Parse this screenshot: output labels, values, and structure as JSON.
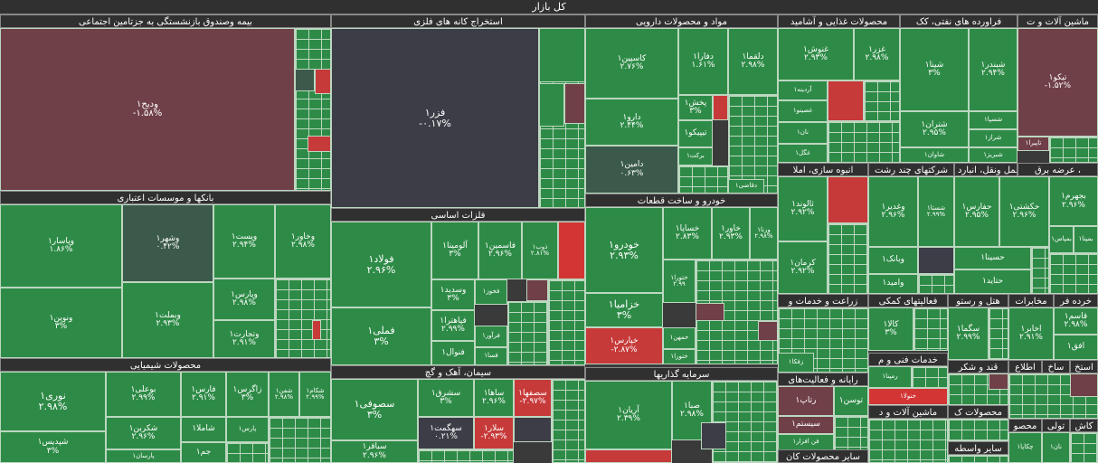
{
  "market_title": "کل بازار",
  "sectors": {
    "insurance": "بیمه وصندوق بازنشستگی به جزتامین اجتماعی",
    "mining": "استخراج کانه های فلزی",
    "pharma": "مواد و محصولات دارویی",
    "food": "محصولات غذایی و آشامید",
    "oil": "فراورده های نفتی، کک",
    "machinery": "ماشین آلات و ت",
    "banks": "بانکها و موسسات اعتباری",
    "basic_metals": "فلزات اساسی",
    "auto": "خودرو و ساخت قطعات",
    "building": "انبوه سازی، املا",
    "multi": "شرکتهای چند رشت",
    "transport": "حمل ونقل، انبارد",
    "utility": "عرضه برق ،",
    "agri": "زراعت و خدمات و",
    "aux": "فعالیتهای کمکی",
    "hotel": "هتل و رستو",
    "telecom": "مخابرات",
    "retail": "خرده فر",
    "chemical": "محصولات شیمیایی",
    "cement": "سیمان، آهک و گچ",
    "invest": "سرمایه گذاریها",
    "computer": "رایانه و فعالیت‌های",
    "eng": "خدمات فنی و م",
    "sugar": "قند و شکر",
    "infotech": "اطلاع",
    "ir": "ساخ",
    "ext": "استخ",
    "electric": "ماشین آلات و د",
    "other_products": "سایر محصولات کان",
    "products_k": "محصولات ک",
    "intermediary": "سایر واسطه",
    "textile": "نساجی",
    "kashi": "کاش",
    "tuli": "تولی",
    "mahsu": "محصو"
  },
  "tiles": {
    "vadi": {
      "name": "ودیح۱",
      "pct": "-۱.۵۸%"
    },
    "fezar": {
      "name": "فزر۱",
      "pct": "-۰.۱۷%"
    },
    "caspian": {
      "name": "کاسپین۱",
      "pct": "۲.۷۶%"
    },
    "dalqa": {
      "name": "دلقما۱",
      "pct": "۲.۹۸%"
    },
    "dafra": {
      "name": "دفارا۱",
      "pct": "۱.۶۱%"
    },
    "darou": {
      "name": "دارو۱",
      "pct": "۲.۴۴%"
    },
    "pakhsh": {
      "name": "پخش۱",
      "pct": "۳%"
    },
    "tipico": {
      "name": "تیپیکو۱",
      "pct": ""
    },
    "barakat": {
      "name": "برکت۱",
      "pct": ""
    },
    "damin": {
      "name": "دامین۱",
      "pct": "۰.۶۳%"
    },
    "daqafi": {
      "name": "دقاضی۱",
      "pct": ""
    },
    "ghonosh": {
      "name": "غنوش۱",
      "pct": "۲.۹۳%"
    },
    "ghezar": {
      "name": "غزر۱",
      "pct": "۲.۹۸%"
    },
    "ardineh": {
      "name": "آردینه۱",
      "pct": ""
    },
    "ghasino": {
      "name": "غصینو۱",
      "pct": ""
    },
    "nan": {
      "name": "نان۱",
      "pct": ""
    },
    "ghagol": {
      "name": "غگل۱",
      "pct": ""
    },
    "shina": {
      "name": "شینا۱",
      "pct": "۳%"
    },
    "shabandar": {
      "name": "شبندر۱",
      "pct": "۲.۹۴%"
    },
    "shetran": {
      "name": "شتران۱",
      "pct": "۲.۹۵%"
    },
    "shesapa": {
      "name": "شسپا۱",
      "pct": ""
    },
    "sheraz": {
      "name": "شراز۱",
      "pct": ""
    },
    "shebriz": {
      "name": "شبریز۱",
      "pct": ""
    },
    "shavan": {
      "name": "شاوان۱",
      "pct": ""
    },
    "tikco": {
      "name": "تیکو۱",
      "pct": "-۱.۵۲%"
    },
    "tapira": {
      "name": "تاپیرا۱",
      "pct": ""
    },
    "vepasar": {
      "name": "وپاسار۱",
      "pct": "۱.۸۶%"
    },
    "vashahr": {
      "name": "وشهر۱",
      "pct": "۰.۴۲%"
    },
    "vpost": {
      "name": "وپست۱",
      "pct": "۲.۹۴%"
    },
    "vkhavar": {
      "name": "وخاور۱",
      "pct": "۲.۹۸%"
    },
    "vnovin": {
      "name": "ونوین۱",
      "pct": "۳%"
    },
    "vbemellat": {
      "name": "وبملت۱",
      "pct": "۲.۹۳%"
    },
    "vparsa": {
      "name": "وپارس۱",
      "pct": "۲.۹۸%"
    },
    "vtejarat": {
      "name": "وتجارت۱",
      "pct": "۲.۹۱%"
    },
    "foulad": {
      "name": "فولاد۱",
      "pct": "۲.۹۶%"
    },
    "falumina": {
      "name": "آلومینا۱",
      "pct": "۳%"
    },
    "faseman": {
      "name": "فاسمین۱",
      "pct": "۲.۹۶%"
    },
    "zob": {
      "name": "ذوب۱",
      "pct": "۲.۸۱%"
    },
    "vasadid": {
      "name": "وسدید۱",
      "pct": "۳%"
    },
    "fakhooz": {
      "name": "فخوز۱",
      "pct": ""
    },
    "femeli": {
      "name": "فملی۱",
      "pct": "۳%"
    },
    "fajahan": {
      "name": "فپاهترا۱",
      "pct": "۲.۹۹%"
    },
    "faravar": {
      "name": "فرآور۱",
      "pct": ""
    },
    "fanval": {
      "name": "فنوال۱",
      "pct": ""
    },
    "fasa": {
      "name": "فسا۱",
      "pct": ""
    },
    "khodro": {
      "name": "خودرو۱",
      "pct": "۲.۹۳%"
    },
    "khasapa": {
      "name": "خساپا۱",
      "pct": "۲.۸۳%"
    },
    "khavar": {
      "name": "خاور۱",
      "pct": "۲.۹۳%"
    },
    "vrena": {
      "name": "ورنا۱",
      "pct": "۲.۹۸%"
    },
    "khazamia": {
      "name": "خزامیا۱",
      "pct": "۳%"
    },
    "khtoura": {
      "name": "ختورا۱",
      "pct": "۲.۹۹"
    },
    "khemhen": {
      "name": "خمهن۱",
      "pct": ""
    },
    "khparas": {
      "name": "خپارس۱",
      "pct": "-۲.۸۷%"
    },
    "khtur2": {
      "name": "ختورا۱",
      "pct": ""
    },
    "taloond": {
      "name": "ثالوند۱",
      "pct": "۲.۹۲%"
    },
    "kerman": {
      "name": "کرمان۱",
      "pct": "۲.۹۲%"
    },
    "vghadir": {
      "name": "وغدیر۱",
      "pct": "۲.۹۶%"
    },
    "shasta": {
      "name": "شستا۱",
      "pct": "۲.۹۹%"
    },
    "vbank": {
      "name": "وبانک۱",
      "pct": ""
    },
    "vamid": {
      "name": "وامید۱",
      "pct": ""
    },
    "hafaras": {
      "name": "حفارس۱",
      "pct": "۲.۹۵%"
    },
    "hakeshti": {
      "name": "حکشتی۱",
      "pct": "۲.۹۶%"
    },
    "hasina": {
      "name": "حسینا۱",
      "pct": ""
    },
    "hatid": {
      "name": "حتاید۱",
      "pct": ""
    },
    "bahram": {
      "name": "بجهرم۱",
      "pct": "۲.۹۶%"
    },
    "bemapna": {
      "name": "بمپنا۱",
      "pct": ""
    },
    "bemaya": {
      "name": "بمپاس۱",
      "pct": ""
    },
    "kala": {
      "name": "کالا۱",
      "pct": "۳%"
    },
    "sagma": {
      "name": "سگما۱",
      "pct": "۲.۹۹%"
    },
    "akhab": {
      "name": "اخابر۱",
      "pct": "۲.۹۱%"
    },
    "ghasem": {
      "name": "قاسم۱",
      "pct": "۲.۹۸%"
    },
    "aghaa": {
      "name": "افق۱",
      "pct": ""
    },
    "zagfa": {
      "name": "زفکا۱",
      "pct": ""
    },
    "nori": {
      "name": "نوری۱",
      "pct": "۲.۹۸%"
    },
    "bouali": {
      "name": "بوعلی۱",
      "pct": "۲.۹۹%"
    },
    "faras": {
      "name": "فارس۱",
      "pct": "۲.۹۱%"
    },
    "zagros": {
      "name": "زاگرس۱",
      "pct": "۳%"
    },
    "shafan": {
      "name": "شفن۱",
      "pct": "۲.۹۸%"
    },
    "shakam": {
      "name": "شکام۱",
      "pct": "۲.۹۹%"
    },
    "shekarbn": {
      "name": "شکربن۱",
      "pct": "۲.۹۶%"
    },
    "shamla": {
      "name": "شاملا۱",
      "pct": ""
    },
    "parsa": {
      "name": "پارس۱",
      "pct": ""
    },
    "shadis": {
      "name": "شپدیس۱",
      "pct": "۳%"
    },
    "jam": {
      "name": "جم۱",
      "pct": ""
    },
    "parsan": {
      "name": "پارسان۱",
      "pct": ""
    },
    "sasoufi": {
      "name": "سصوفی۱",
      "pct": "۳%"
    },
    "sasharq": {
      "name": "سشرق۱",
      "pct": "۳%"
    },
    "sahaha": {
      "name": "ساها۱",
      "pct": "۲.۹۶%"
    },
    "sasfaha": {
      "name": "سصفها۱",
      "pct": "-۲.۹۷%"
    },
    "sahgamt": {
      "name": "سهگمت۱",
      "pct": "۰.۲۱%"
    },
    "salar": {
      "name": "سلار۱",
      "pct": "-۲.۹۳%"
    },
    "sabaqer": {
      "name": "سباقر۱",
      "pct": "۲.۹۶%"
    },
    "arian": {
      "name": "آریان۱",
      "pct": "۲.۳۹%"
    },
    "saba": {
      "name": "صبا۱",
      "pct": "۲.۹۸%"
    },
    "rapta": {
      "name": "رتاپ۱",
      "pct": ""
    },
    "tosan": {
      "name": "توسن۱",
      "pct": ""
    },
    "sistam": {
      "name": "سیستم۱",
      "pct": ""
    },
    "fanafzar": {
      "name": "فن افزار۱",
      "pct": ""
    },
    "rampna": {
      "name": "رمپنا۱",
      "pct": ""
    },
    "khanula": {
      "name": "خنولا۱",
      "pct": ""
    },
    "chekapa": {
      "name": "چکاپا۱",
      "pct": ""
    },
    "nan2": {
      "name": "نان۱",
      "pct": ""
    }
  }
}
